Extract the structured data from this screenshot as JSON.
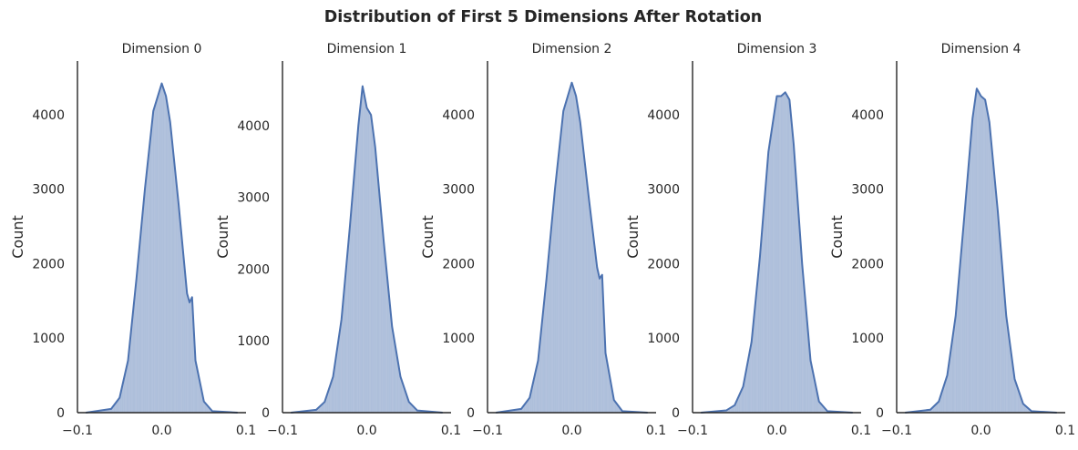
{
  "figure": {
    "title": "Distribution of First 5 Dimensions After Rotation",
    "accent_color": "#4c72b0"
  },
  "chart_data": [
    {
      "type": "histogram",
      "title": "Dimension 0",
      "xlabel": "",
      "ylabel": "Count",
      "xlim": [
        -0.1,
        0.1
      ],
      "ylim": [
        0,
        4720
      ],
      "xticks": [
        -0.1,
        0.0,
        0.1
      ],
      "xtick_labels": [
        "−0.1",
        "0.0",
        "0.1"
      ],
      "yticks": [
        0,
        1000,
        2000,
        3000,
        4000
      ],
      "yticks_labels": [
        "0",
        "1000",
        "2000",
        "3000",
        "4000"
      ],
      "grid": false,
      "x": [
        -0.09,
        -0.06,
        -0.05,
        -0.04,
        -0.03,
        -0.02,
        -0.01,
        0.0,
        0.005,
        0.01,
        0.02,
        0.03,
        0.033,
        0.036,
        0.04,
        0.05,
        0.06,
        0.09
      ],
      "counts": [
        0,
        50,
        200,
        700,
        1800,
        3000,
        4050,
        4420,
        4250,
        3900,
        2800,
        1600,
        1480,
        1550,
        700,
        150,
        20,
        0
      ]
    },
    {
      "type": "histogram",
      "title": "Dimension 1",
      "xlabel": "",
      "ylabel": "Count",
      "xlim": [
        -0.1,
        0.1
      ],
      "ylim": [
        0,
        4900
      ],
      "xticks": [
        -0.1,
        0.0,
        0.1
      ],
      "xtick_labels": [
        "−0.1",
        "0.0",
        "0.1"
      ],
      "yticks": [
        0,
        1000,
        2000,
        3000,
        4000
      ],
      "yticks_labels": [
        "0",
        "1000",
        "2000",
        "3000",
        "4000"
      ],
      "grid": false,
      "x": [
        -0.09,
        -0.06,
        -0.05,
        -0.04,
        -0.03,
        -0.02,
        -0.01,
        -0.005,
        0.0,
        0.005,
        0.01,
        0.02,
        0.03,
        0.04,
        0.05,
        0.06,
        0.09
      ],
      "counts": [
        0,
        40,
        150,
        500,
        1300,
        2600,
        4000,
        4550,
        4250,
        4150,
        3700,
        2400,
        1200,
        500,
        150,
        30,
        0
      ]
    },
    {
      "type": "histogram",
      "title": "Dimension 2",
      "xlabel": "",
      "ylabel": "Count",
      "xlim": [
        -0.1,
        0.1
      ],
      "ylim": [
        0,
        4720
      ],
      "xticks": [
        -0.1,
        0.0,
        0.1
      ],
      "xtick_labels": [
        "−0.1",
        "0.0",
        "0.1"
      ],
      "yticks": [
        0,
        1000,
        2000,
        3000,
        4000
      ],
      "yticks_labels": [
        "0",
        "1000",
        "2000",
        "3000",
        "4000"
      ],
      "grid": false,
      "x": [
        -0.09,
        -0.06,
        -0.05,
        -0.04,
        -0.03,
        -0.02,
        -0.01,
        0.0,
        0.005,
        0.01,
        0.02,
        0.03,
        0.033,
        0.036,
        0.04,
        0.05,
        0.06,
        0.09
      ],
      "counts": [
        0,
        50,
        200,
        700,
        1800,
        3000,
        4050,
        4430,
        4250,
        3900,
        2900,
        1950,
        1800,
        1850,
        800,
        170,
        20,
        0
      ]
    },
    {
      "type": "histogram",
      "title": "Dimension 3",
      "xlabel": "",
      "ylabel": "Count",
      "xlim": [
        -0.1,
        0.1
      ],
      "ylim": [
        0,
        4720
      ],
      "xticks": [
        -0.1,
        0.0,
        0.1
      ],
      "xtick_labels": [
        "−0.1",
        "0.0",
        "0.1"
      ],
      "yticks": [
        0,
        1000,
        2000,
        3000,
        4000
      ],
      "yticks_labels": [
        "0",
        "1000",
        "2000",
        "3000",
        "4000"
      ],
      "grid": false,
      "x": [
        -0.09,
        -0.06,
        -0.05,
        -0.04,
        -0.03,
        -0.02,
        -0.01,
        0.0,
        0.005,
        0.01,
        0.015,
        0.02,
        0.03,
        0.04,
        0.05,
        0.06,
        0.09
      ],
      "counts": [
        0,
        30,
        100,
        350,
        950,
        2100,
        3500,
        4250,
        4250,
        4300,
        4200,
        3600,
        2000,
        700,
        150,
        20,
        0
      ]
    },
    {
      "type": "histogram",
      "title": "Dimension 4",
      "xlabel": "",
      "ylabel": "Count",
      "xlim": [
        -0.1,
        0.1
      ],
      "ylim": [
        0,
        4720
      ],
      "xticks": [
        -0.1,
        0.0,
        0.1
      ],
      "xtick_labels": [
        "−0.1",
        "0.0",
        "0.1"
      ],
      "yticks": [
        0,
        1000,
        2000,
        3000,
        4000
      ],
      "yticks_labels": [
        "0",
        "1000",
        "2000",
        "3000",
        "4000"
      ],
      "grid": false,
      "x": [
        -0.09,
        -0.06,
        -0.05,
        -0.04,
        -0.03,
        -0.02,
        -0.01,
        -0.005,
        0.0,
        0.005,
        0.01,
        0.02,
        0.03,
        0.04,
        0.05,
        0.06,
        0.09
      ],
      "counts": [
        0,
        40,
        150,
        500,
        1300,
        2600,
        3950,
        4350,
        4250,
        4200,
        3900,
        2700,
        1300,
        450,
        120,
        20,
        0
      ]
    }
  ]
}
